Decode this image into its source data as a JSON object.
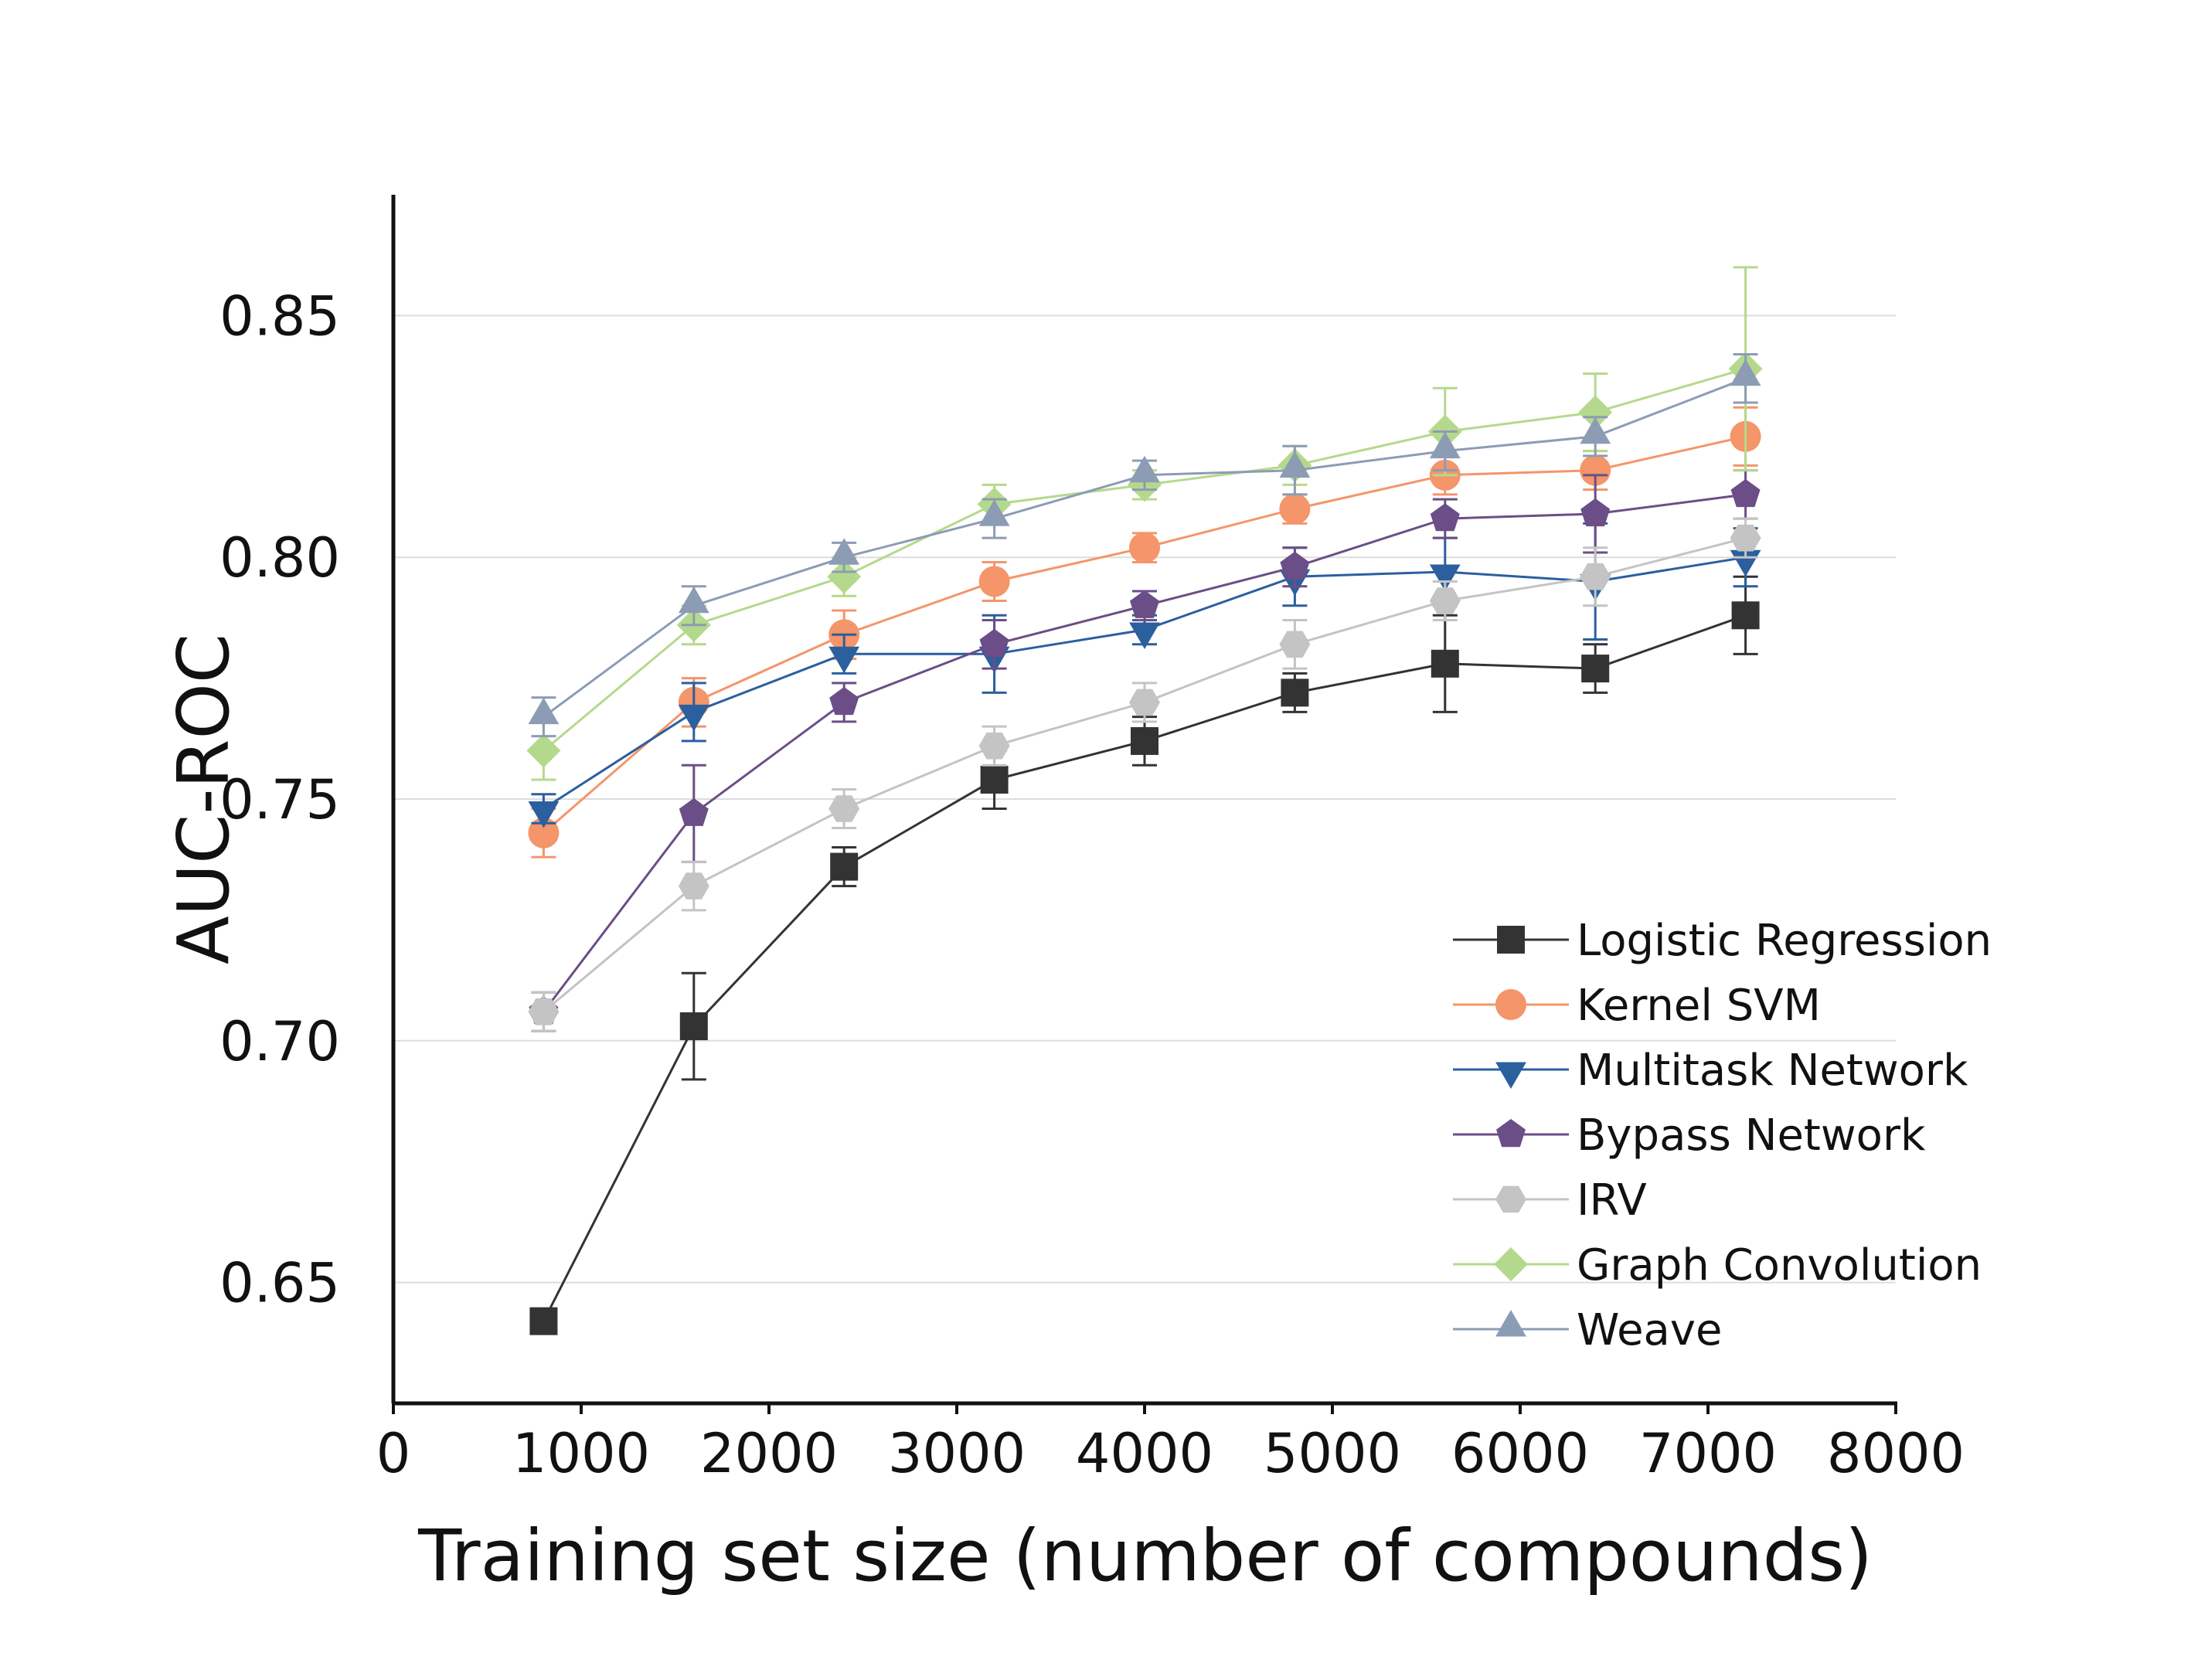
{
  "chart_data": {
    "type": "line",
    "title": "",
    "xlabel": "Training set size (number of compounds)",
    "ylabel": "AUC-ROC",
    "xlim": [
      0,
      8000
    ],
    "ylim": [
      0.625,
      0.875
    ],
    "xticks": [
      0,
      1000,
      2000,
      3000,
      4000,
      5000,
      6000,
      7000,
      8000
    ],
    "yticks": [
      0.65,
      0.7,
      0.75,
      0.8,
      0.85
    ],
    "xtick_labels": [
      "0",
      "1000",
      "2000",
      "3000",
      "4000",
      "5000",
      "6000",
      "7000",
      "8000"
    ],
    "ytick_labels": [
      "0.65",
      "0.70",
      "0.75",
      "0.80",
      "0.85"
    ],
    "grid": "horizontal",
    "legend_position": "bottom-right",
    "x": [
      800,
      1600,
      2400,
      3200,
      4000,
      4800,
      5600,
      6400,
      7200
    ],
    "series": [
      {
        "name": "Logistic Regression",
        "color": "#333333",
        "marker": "square",
        "values": [
          0.642,
          0.703,
          0.736,
          0.754,
          0.762,
          0.772,
          0.778,
          0.777,
          0.788
        ],
        "errors": [
          0.0,
          0.011,
          0.004,
          0.006,
          0.005,
          0.004,
          0.01,
          0.005,
          0.008
        ]
      },
      {
        "name": "Kernel SVM",
        "color": "#f4956a",
        "marker": "circle",
        "values": [
          0.743,
          0.77,
          0.784,
          0.795,
          0.802,
          0.81,
          0.817,
          0.818,
          0.825
        ],
        "errors": [
          0.005,
          0.005,
          0.005,
          0.004,
          0.003,
          0.003,
          0.004,
          0.004,
          0.006
        ]
      },
      {
        "name": "Multitask Network",
        "color": "#2b5f9e",
        "marker": "triangle-down",
        "values": [
          0.748,
          0.768,
          0.78,
          0.78,
          0.785,
          0.796,
          0.797,
          0.795,
          0.8
        ],
        "errors": [
          0.003,
          0.006,
          0.004,
          0.008,
          0.003,
          0.006,
          0.007,
          0.012,
          0.006
        ]
      },
      {
        "name": "Bypass Network",
        "color": "#6b4e87",
        "marker": "pentagon",
        "values": [
          0.706,
          0.747,
          0.77,
          0.782,
          0.79,
          0.798,
          0.808,
          0.809,
          0.813
        ],
        "errors": [
          0.004,
          0.01,
          0.004,
          0.005,
          0.003,
          0.004,
          0.004,
          0.008,
          0.005
        ]
      },
      {
        "name": "IRV",
        "color": "#c4c4c4",
        "marker": "hexagon",
        "values": [
          0.706,
          0.732,
          0.748,
          0.761,
          0.77,
          0.782,
          0.791,
          0.796,
          0.804
        ],
        "errors": [
          0.004,
          0.005,
          0.004,
          0.004,
          0.004,
          0.005,
          0.004,
          0.006,
          0.004
        ]
      },
      {
        "name": "Graph Convolution",
        "color": "#b5d98c",
        "marker": "diamond",
        "values": [
          0.76,
          0.786,
          0.796,
          0.811,
          0.815,
          0.819,
          0.826,
          0.83,
          0.839
        ],
        "errors": [
          0.006,
          0.004,
          0.004,
          0.004,
          0.003,
          0.004,
          0.009,
          0.008,
          0.021
        ]
      },
      {
        "name": "Weave",
        "color": "#8c9cb5",
        "marker": "triangle-up",
        "values": [
          0.767,
          0.79,
          0.8,
          0.808,
          0.817,
          0.818,
          0.822,
          0.825,
          0.837
        ],
        "errors": [
          0.004,
          0.004,
          0.003,
          0.004,
          0.003,
          0.005,
          0.004,
          0.004,
          0.005
        ]
      }
    ]
  }
}
